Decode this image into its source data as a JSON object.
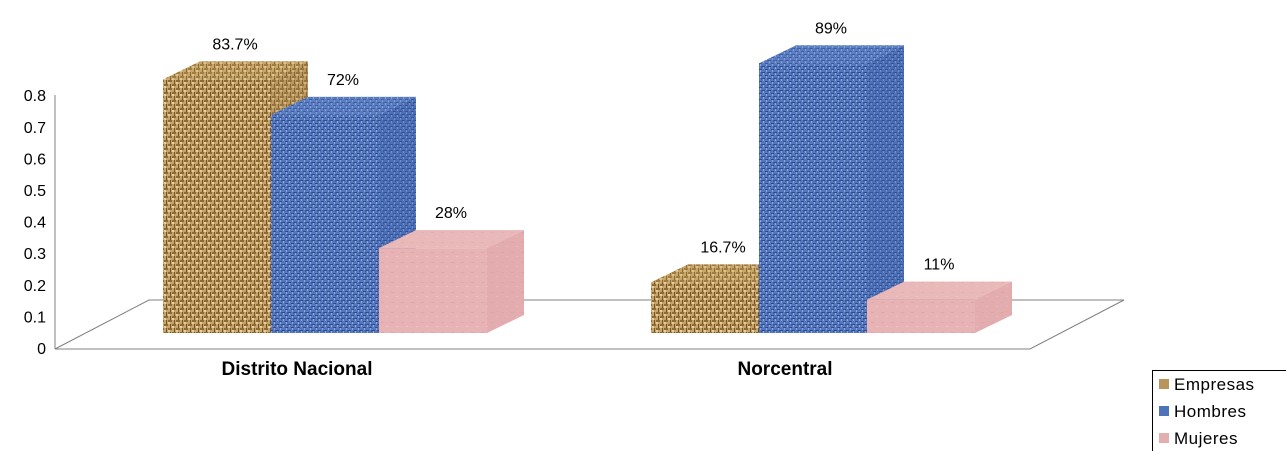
{
  "chart_data": {
    "type": "bar",
    "style": "3d-clustered-column",
    "categories": [
      "Distrito Nacional",
      "Norcentral"
    ],
    "series": [
      {
        "name": "Empresas",
        "values": [
          0.837,
          0.167
        ],
        "data_labels": [
          "83.7%",
          "16.7%"
        ],
        "color": "#b8955a"
      },
      {
        "name": "Hombres",
        "values": [
          0.72,
          0.89
        ],
        "data_labels": [
          "72%",
          "89%"
        ],
        "color": "#4f73b8"
      },
      {
        "name": "Mujeres",
        "values": [
          0.28,
          0.11
        ],
        "data_labels": [
          "28%",
          "11%"
        ],
        "color": "#e2aeb0"
      }
    ],
    "y_ticks": [
      "0",
      "0.1",
      "0.2",
      "0.3",
      "0.4",
      "0.5",
      "0.6",
      "0.7",
      "0.8"
    ],
    "ylim": [
      0,
      0.8
    ],
    "legend_position": "bottom-right",
    "grid": false
  }
}
